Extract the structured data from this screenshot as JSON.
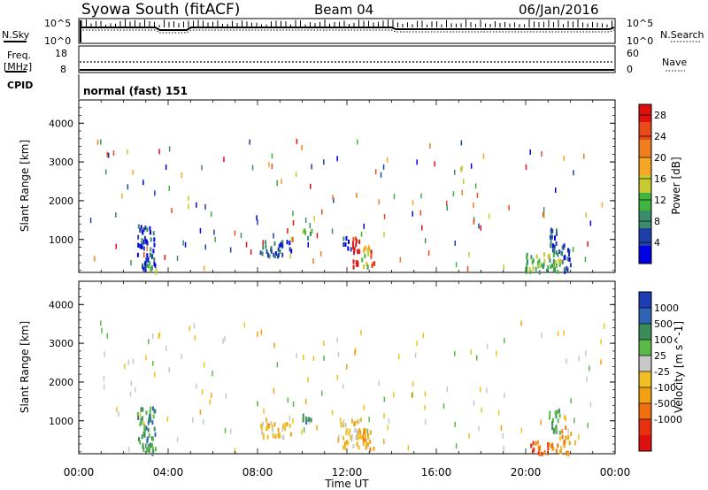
{
  "header": {
    "station": "Syowa South (fitACF)",
    "beam": "Beam 04",
    "date": "06/Jan/2016"
  },
  "top_panels": {
    "nsky_label": "N.Sky",
    "nsky_ticks": [
      "10^5",
      "10^0"
    ],
    "nsearch_label": "N.Search",
    "nsearch_ticks": [
      "10^5",
      "10^0"
    ],
    "freq_label_1": "Freq.",
    "freq_label_2": "[MHz]",
    "freq_ticks": [
      "18",
      "8"
    ],
    "nave_label": "Nave",
    "nave_ticks": [
      "60",
      "0"
    ],
    "cpid_label": "CPID",
    "cpid_value": "normal (fast) 151"
  },
  "colors": {
    "power_scale": [
      "#0000e6",
      "#1e3fa8",
      "#3a8c6a",
      "#3fb53f",
      "#c8c830",
      "#f5a623",
      "#f07d1e",
      "#e84a1a",
      "#e01010"
    ],
    "velocity_scale": [
      "#1e3cb4",
      "#2f64b4",
      "#3a8c5a",
      "#5ab848",
      "#c8c8c8",
      "#f0c020",
      "#f0a010",
      "#f07010",
      "#e83010",
      "#e01010"
    ]
  },
  "chart_data": [
    {
      "type": "heatmap",
      "name": "power",
      "ylabel": "Slant Range [km]",
      "xlabel": "Time UT",
      "xlim": [
        0,
        24
      ],
      "ylim": [
        150,
        4600
      ],
      "xticks": [
        "00:00",
        "04:00",
        "08:00",
        "12:00",
        "16:00",
        "20:00",
        "00:00"
      ],
      "yticks": [
        "1000",
        "2000",
        "3000",
        "4000"
      ],
      "colorbar": {
        "label": "Power [dB]",
        "ticks": [
          "4",
          "8",
          "12",
          "16",
          "20",
          "24",
          "28"
        ],
        "range": [
          0,
          30
        ]
      },
      "clusters": [
        {
          "t": [
            2.6,
            3.4
          ],
          "r": [
            250,
            1400
          ],
          "level": 1
        },
        {
          "t": [
            3.0,
            3.5
          ],
          "r": [
            180,
            450
          ],
          "level": 3
        },
        {
          "t": [
            8.0,
            9.5
          ],
          "r": [
            600,
            1000
          ],
          "level": 1
        },
        {
          "t": [
            10.0,
            10.4
          ],
          "r": [
            1000,
            1300
          ],
          "level": 3
        },
        {
          "t": [
            11.8,
            12.2
          ],
          "r": [
            800,
            1100
          ],
          "level": 1
        },
        {
          "t": [
            12.2,
            12.6
          ],
          "r": [
            300,
            1100
          ],
          "level": 8
        },
        {
          "t": [
            12.6,
            13.0
          ],
          "r": [
            300,
            900
          ],
          "level": 4
        },
        {
          "t": [
            13.0,
            13.2
          ],
          "r": [
            300,
            800
          ],
          "level": 7
        },
        {
          "t": [
            20.0,
            21.6
          ],
          "r": [
            180,
            700
          ],
          "level": 3
        },
        {
          "t": [
            21.0,
            21.5
          ],
          "r": [
            700,
            1400
          ],
          "level": 1
        },
        {
          "t": [
            21.5,
            22.0
          ],
          "r": [
            180,
            900
          ],
          "level": 1
        }
      ]
    },
    {
      "type": "heatmap",
      "name": "velocity",
      "ylabel": "Slant Range [km]",
      "xlabel": "Time UT",
      "xlim": [
        0,
        24
      ],
      "ylim": [
        150,
        4600
      ],
      "xticks": [
        "00:00",
        "04:00",
        "08:00",
        "12:00",
        "16:00",
        "20:00",
        "00:00"
      ],
      "yticks": [
        "1000",
        "2000",
        "3000",
        "4000"
      ],
      "colorbar": {
        "label": "Velocity [m s^-1]",
        "ticks": [
          "1000",
          "500",
          "100",
          "25",
          "-25",
          "-100",
          "-500",
          "-1000"
        ]
      },
      "clusters": [
        {
          "t": [
            2.6,
            3.4
          ],
          "r": [
            250,
            1400
          ],
          "level": 2
        },
        {
          "t": [
            3.0,
            3.5
          ],
          "r": [
            180,
            450
          ],
          "level": 3
        },
        {
          "t": [
            8.0,
            9.5
          ],
          "r": [
            600,
            1000
          ],
          "level": 5
        },
        {
          "t": [
            10.0,
            10.4
          ],
          "r": [
            1000,
            1300
          ],
          "level": 2
        },
        {
          "t": [
            11.8,
            12.6
          ],
          "r": [
            300,
            1100
          ],
          "level": 5
        },
        {
          "t": [
            12.6,
            13.2
          ],
          "r": [
            300,
            900
          ],
          "level": 6
        },
        {
          "t": [
            20.0,
            21.4
          ],
          "r": [
            180,
            500
          ],
          "level": 7
        },
        {
          "t": [
            21.0,
            21.5
          ],
          "r": [
            700,
            1400
          ],
          "level": 3
        },
        {
          "t": [
            21.5,
            22.0
          ],
          "r": [
            180,
            900
          ],
          "level": 6
        }
      ]
    }
  ]
}
